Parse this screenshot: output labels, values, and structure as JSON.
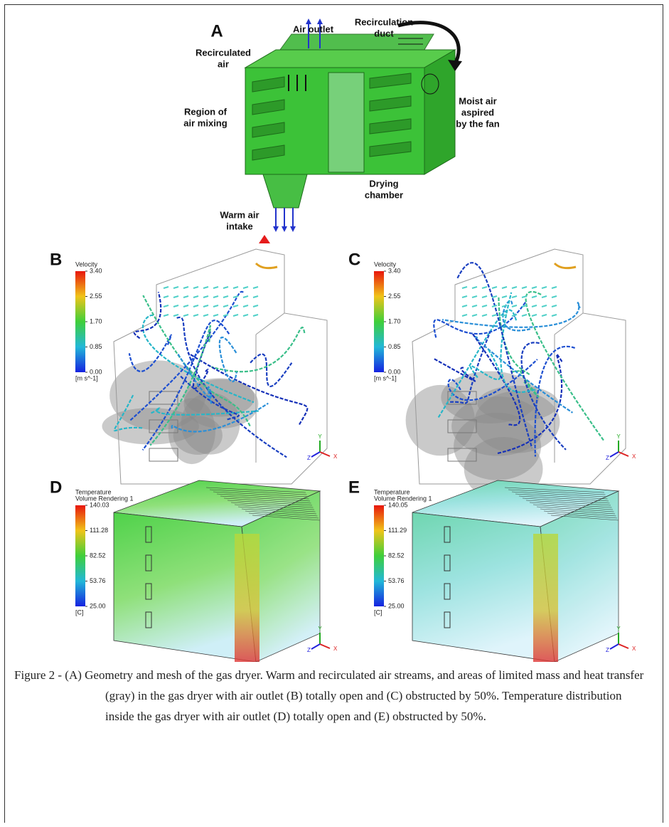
{
  "panels": [
    {
      "letter": "A",
      "labels": [
        {
          "lines": [
            "Air outlet"
          ]
        },
        {
          "lines": [
            "Recirculation",
            "duct"
          ]
        },
        {
          "lines": [
            "Recirculated",
            "air"
          ]
        },
        {
          "lines": [
            "Moist air",
            "aspired",
            "by the fan"
          ]
        },
        {
          "lines": [
            "Region of",
            "air mixing"
          ]
        },
        {
          "lines": [
            "Drying",
            "chamber"
          ]
        },
        {
          "lines": [
            "Warm air",
            "intake"
          ]
        }
      ]
    },
    {
      "letter": "B",
      "colorbar": {
        "title": [
          "Velocity"
        ],
        "ticks": [
          "3.40",
          "2.55",
          "1.70",
          "0.85",
          "0.00"
        ],
        "unit": "[m s^-1]"
      },
      "axes": [
        "Y",
        "X",
        "Z"
      ]
    },
    {
      "letter": "C",
      "colorbar": {
        "title": [
          "Velocity"
        ],
        "ticks": [
          "3.40",
          "2.55",
          "1.70",
          "0.85",
          "0.00"
        ],
        "unit": "[m s^-1]"
      },
      "axes": [
        "Y",
        "X",
        "Z"
      ]
    },
    {
      "letter": "D",
      "colorbar": {
        "title": [
          "Temperature",
          "Volume Rendering 1"
        ],
        "ticks": [
          "140.03",
          "111.28",
          "82.52",
          "53.76",
          "25.00"
        ],
        "unit": "[C]"
      },
      "axes": [
        "Y",
        "X",
        "Z"
      ]
    },
    {
      "letter": "E",
      "colorbar": {
        "title": [
          "Temperature",
          "Volume Rendering 1"
        ],
        "ticks": [
          "140.05",
          "111.29",
          "82.52",
          "53.76",
          "25.00"
        ],
        "unit": "[C]"
      },
      "axes": [
        "Y",
        "X",
        "Z"
      ]
    }
  ],
  "caption": "Figure 2 - (A) Geometry and mesh of the gas dryer. Warm and recirculated air streams, and areas of limited mass and heat transfer (gray) in the gas dryer with air outlet (B) totally open and (C) obstructed by 50%. Temperature distribution inside the gas dryer with air outlet (D) totally open and (E) obstructed by 50%."
}
